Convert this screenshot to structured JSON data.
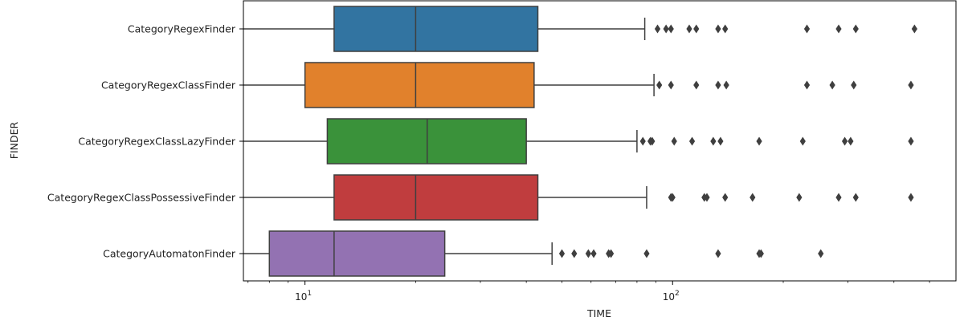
{
  "chart_data": {
    "type": "boxplot",
    "orientation": "horizontal",
    "xlabel": "TIME",
    "ylabel": "FINDER",
    "x_scale": "log",
    "xlim": [
      6.8,
      590
    ],
    "x_major_ticks": [
      {
        "value": 10,
        "base": "10",
        "exp": "1"
      },
      {
        "value": 100,
        "base": "10",
        "exp": "2"
      }
    ],
    "grid": false,
    "legend": "none",
    "series": [
      {
        "name": "CategoryRegexFinder",
        "color": "#3274a1",
        "whisker_low": 6.8,
        "q1": 12,
        "median": 20,
        "q3": 43,
        "whisker_high": 84,
        "outliers": [
          91,
          96,
          99,
          111,
          116,
          133,
          139,
          232,
          283,
          315,
          455
        ]
      },
      {
        "name": "CategoryRegexClassFinder",
        "color": "#e1812c",
        "whisker_low": 6.8,
        "q1": 10,
        "median": 20,
        "q3": 42,
        "whisker_high": 89,
        "outliers": [
          92,
          99,
          116,
          133,
          140,
          232,
          272,
          311,
          445
        ]
      },
      {
        "name": "CategoryRegexClassLazyFinder",
        "color": "#3a923a",
        "whisker_low": 6.8,
        "q1": 11.5,
        "median": 21.5,
        "q3": 40,
        "whisker_high": 80,
        "outliers": [
          83,
          87,
          88,
          101,
          113,
          129,
          135,
          172,
          226,
          294,
          305,
          445
        ]
      },
      {
        "name": "CategoryRegexClassPossessiveFinder",
        "color": "#c03d3e",
        "whisker_low": 6.8,
        "q1": 12,
        "median": 20,
        "q3": 43,
        "whisker_high": 85,
        "outliers": [
          99,
          100,
          122,
          124,
          139,
          165,
          221,
          283,
          315,
          445
        ]
      },
      {
        "name": "CategoryAutomatonFinder",
        "color": "#9372b2",
        "whisker_low": 6.8,
        "q1": 8,
        "median": 12,
        "q3": 24,
        "whisker_high": 47,
        "outliers": [
          50,
          54,
          59,
          61,
          67,
          68,
          85,
          133,
          172,
          174,
          253
        ]
      }
    ]
  }
}
